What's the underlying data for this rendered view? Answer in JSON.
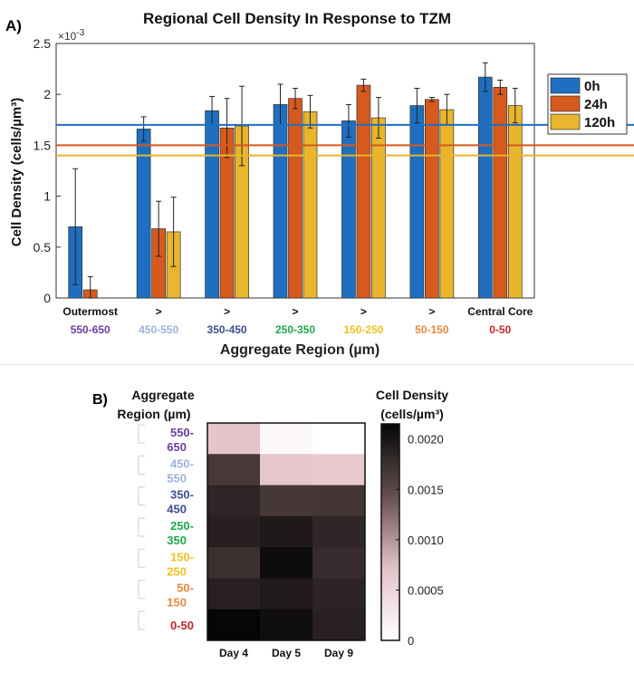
{
  "panel_a_label": "A)",
  "panel_b_label": "B)",
  "chart_data": [
    {
      "type": "bar",
      "title": "Regional Cell Density In Response to TZM",
      "xlabel": "Aggregate Region (µm)",
      "ylabel": "Cell Density (cells/µm³)",
      "y_exponent_label": "×10",
      "y_exponent_power": "-3",
      "ylim": [
        0,
        2.5
      ],
      "yticks": [
        0,
        0.5,
        1,
        1.5,
        2,
        2.5
      ],
      "ytick_labels": [
        "0",
        "0.5",
        "1",
        "1.5",
        "2",
        "2.5"
      ],
      "grid": false,
      "legend_position": "right",
      "categories": [
        {
          "top": "Outermost",
          "bottom": "550-650",
          "color": "#6b3fa0"
        },
        {
          "top": ">",
          "bottom": "450-550",
          "color": "#9ab3d8"
        },
        {
          "top": ">",
          "bottom": "350-450",
          "color": "#3d4f8e"
        },
        {
          "top": ">",
          "bottom": "250-350",
          "color": "#1fa84c"
        },
        {
          "top": ">",
          "bottom": "150-250",
          "color": "#efc21c"
        },
        {
          "top": ">",
          "bottom": "50-150",
          "color": "#e8893a"
        },
        {
          "top": "Central Core",
          "bottom": "0-50",
          "color": "#c0272d"
        }
      ],
      "series": [
        {
          "name": "0h",
          "color": "#1f6fc0",
          "values": [
            0.7,
            1.66,
            1.84,
            1.9,
            1.74,
            1.89,
            2.17
          ],
          "errors": [
            0.57,
            0.12,
            0.14,
            0.2,
            0.16,
            0.17,
            0.14
          ]
        },
        {
          "name": "24h",
          "color": "#d65a1e",
          "values": [
            0.08,
            0.68,
            1.67,
            1.96,
            2.09,
            1.95,
            2.07
          ],
          "errors": [
            0.13,
            0.27,
            0.29,
            0.1,
            0.06,
            0.02,
            0.07
          ]
        },
        {
          "name": "120h",
          "color": "#e8b52c",
          "values": [
            0.0,
            0.65,
            1.69,
            1.83,
            1.77,
            1.85,
            1.89
          ],
          "errors": [
            0.0,
            0.34,
            0.39,
            0.16,
            0.2,
            0.15,
            0.17
          ]
        }
      ],
      "reference_lines": [
        {
          "value": 1.7,
          "color": "#1f6fc0"
        },
        {
          "value": 1.5,
          "color": "#d65a1e"
        },
        {
          "value": 1.4,
          "color": "#e8b52c"
        }
      ]
    },
    {
      "type": "heatmap",
      "row_header": [
        "Aggregate",
        "Region (µm)"
      ],
      "colorbar_title": [
        "Cell Density",
        "(cells/µm³)"
      ],
      "columns": [
        "Day 4",
        "Day 5",
        "Day 9"
      ],
      "rows": [
        {
          "label": [
            "550-",
            "650"
          ],
          "color": "#6b3fa0"
        },
        {
          "label": [
            "450-",
            "550"
          ],
          "color": "#9ab3d8"
        },
        {
          "label": [
            "350-",
            "450"
          ],
          "color": "#3d4f8e"
        },
        {
          "label": [
            "250-",
            "350"
          ],
          "color": "#1fa84c"
        },
        {
          "label": [
            "150-",
            "250"
          ],
          "color": "#efc21c"
        },
        {
          "label": [
            "50-",
            "150"
          ],
          "color": "#e8893a"
        },
        {
          "label": [
            "0-50"
          ],
          "color": "#c0272d"
        }
      ],
      "values": [
        [
          0.0007,
          8e-05,
          0.0
        ],
        [
          0.00166,
          0.00068,
          0.00065
        ],
        [
          0.00184,
          0.00167,
          0.00169
        ],
        [
          0.0019,
          0.00196,
          0.00183
        ],
        [
          0.00174,
          0.00209,
          0.00177
        ],
        [
          0.00189,
          0.00195,
          0.00185
        ],
        [
          0.00217,
          0.00207,
          0.00189
        ]
      ],
      "color_range": [
        0,
        0.00215
      ],
      "colorbar_ticks": [
        0,
        0.0005,
        0.001,
        0.0015,
        0.002
      ],
      "colorbar_tick_labels": [
        "0",
        "0.0005",
        "0.0010",
        "0.0015",
        "0.0020"
      ]
    }
  ]
}
